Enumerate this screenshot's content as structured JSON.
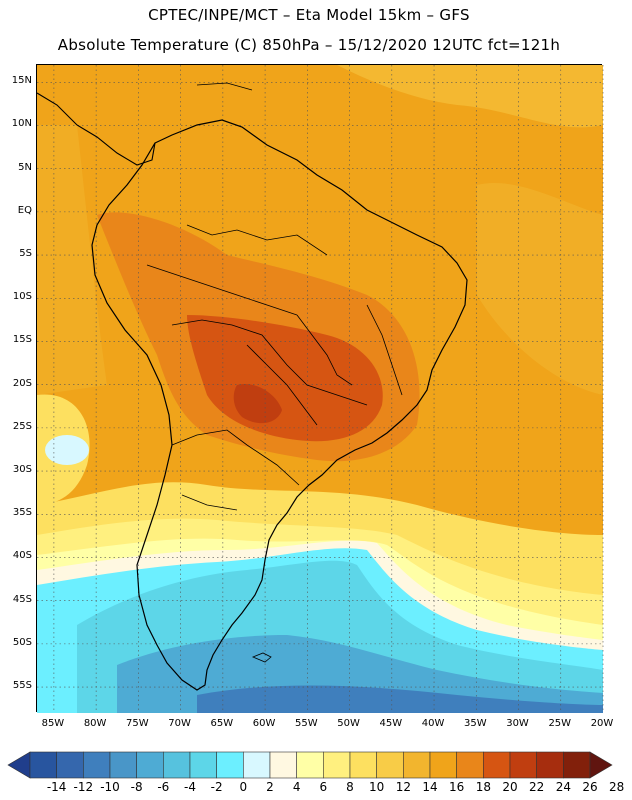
{
  "title_line1": "CPTEC/INPE/MCT  –   Eta Model 15km  –  GFS",
  "title_line2": "Absolute Temperature (C) 850hPa – 15/12/2020 12UTC fct=121h",
  "lat_labels": [
    "15N",
    "10N",
    "5N",
    "EQ",
    "5S",
    "10S",
    "15S",
    "20S",
    "25S",
    "30S",
    "35S",
    "40S",
    "45S",
    "50S",
    "55S"
  ],
  "lon_labels": [
    "85W",
    "80W",
    "75W",
    "70W",
    "65W",
    "60W",
    "55W",
    "50W",
    "45W",
    "40W",
    "35W",
    "30W",
    "25W",
    "20W"
  ],
  "colorbar": {
    "labels": [
      "-14",
      "-12",
      "-10",
      "-8",
      "-6",
      "-4",
      "-2",
      "0",
      "2",
      "4",
      "6",
      "8",
      "10",
      "12",
      "14",
      "16",
      "18",
      "20",
      "22",
      "24",
      "26",
      "28"
    ],
    "colors": [
      "#203e8c",
      "#28559f",
      "#3567ad",
      "#3f7fbd",
      "#4996c8",
      "#4eabd4",
      "#56c2de",
      "#5dd6e8",
      "#6cefff",
      "#d8f8ff",
      "#fff8e1",
      "#ffffa6",
      "#fff07f",
      "#fde060",
      "#f8cc47",
      "#f2b52e",
      "#f0a41a",
      "#e9861a",
      "#d65512",
      "#c03e10",
      "#a62d0e",
      "#82200b",
      "#60150f"
    ]
  },
  "map": {
    "lat_range": [
      -58,
      17
    ],
    "lon_range": [
      -87,
      -20
    ],
    "fill_colors": {
      "deep_ocean_south": "#3f7fbd",
      "cold_ocean": "#4eabd4",
      "cool_ocean": "#5dd6e8",
      "chill": "#6cefff",
      "pale": "#d8f8ff",
      "cream": "#fff8e1",
      "yellow_light": "#ffffa6",
      "yellow": "#fff07f",
      "yellow_mid": "#fde060",
      "gold": "#f8cc47",
      "amber": "#f2b52e",
      "orange": "#f0a41a",
      "dark_orange": "#e9861a",
      "red_orange": "#d65512",
      "deep": "#c03e10"
    }
  }
}
